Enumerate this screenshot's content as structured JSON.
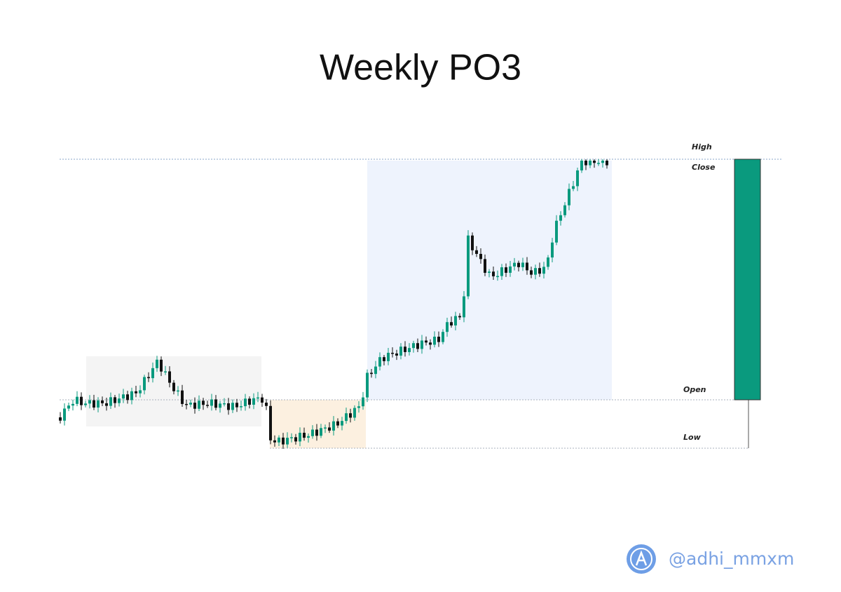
{
  "title": "Weekly PO3",
  "levels": {
    "high": "High",
    "close": "Close",
    "open": "Open",
    "low": "Low"
  },
  "footer": {
    "handle": "@adhi_mmxm"
  }
}
